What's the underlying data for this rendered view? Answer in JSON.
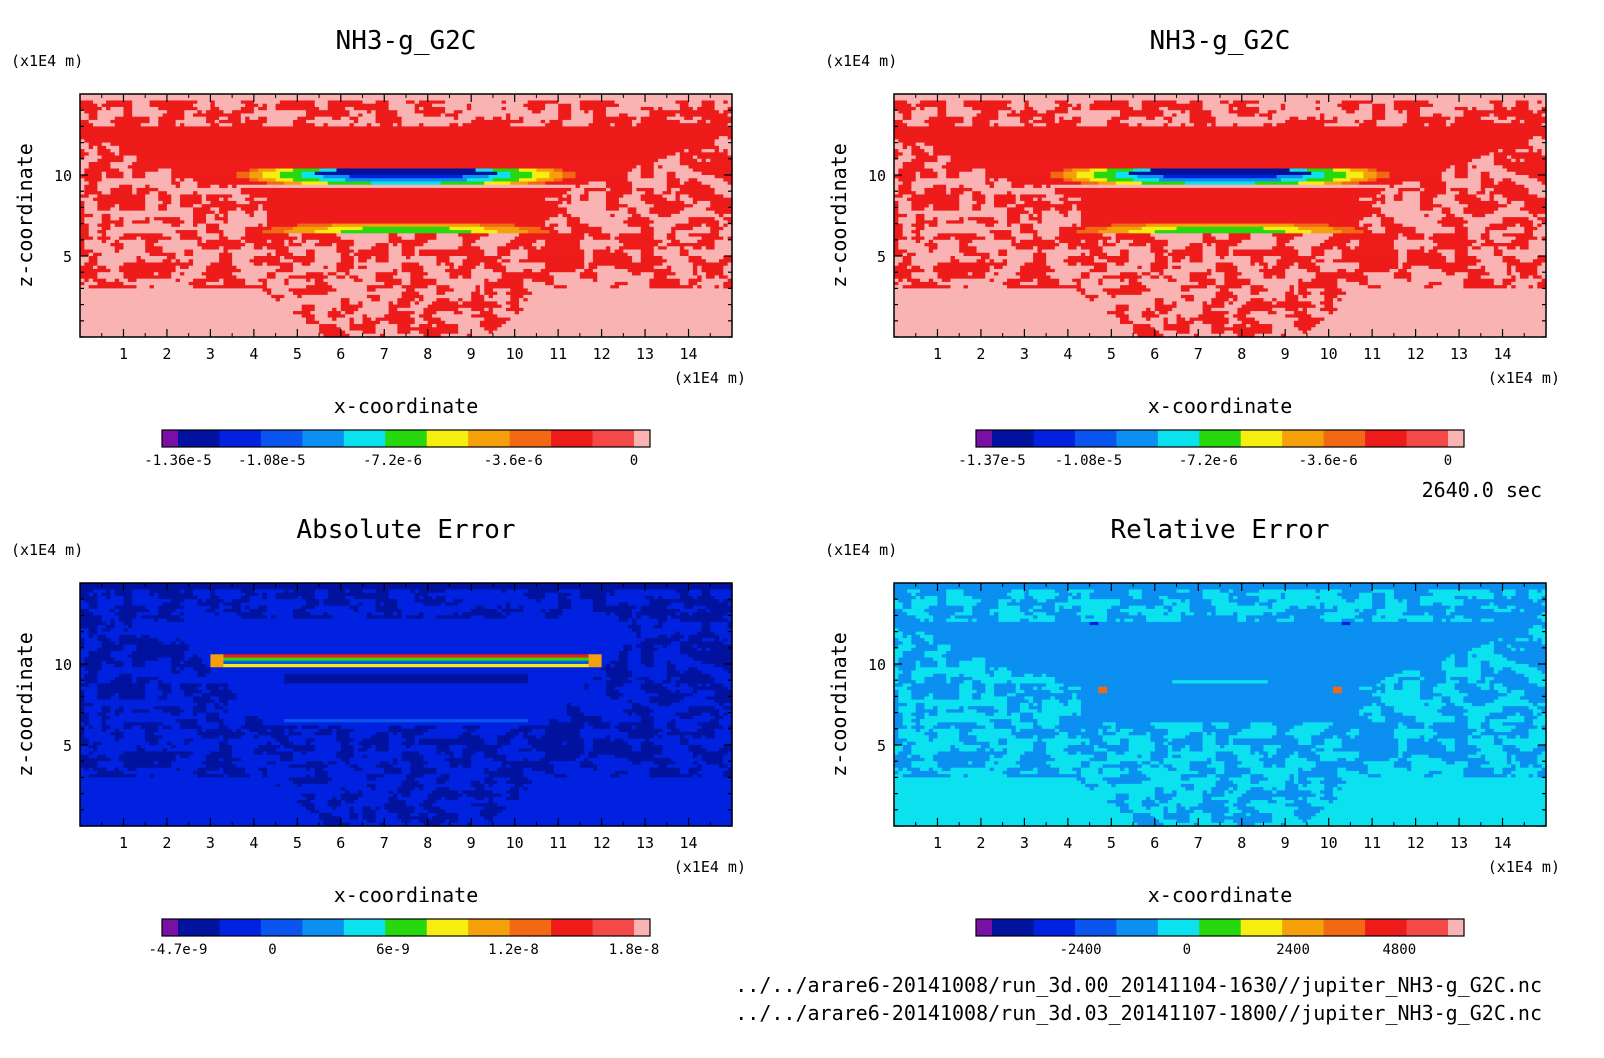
{
  "time_label": "2640.0 sec",
  "files": [
    "../../arare6-20141008/run_3d.00_20141104-1630//jupiter_NH3-g_G2C.nc",
    "../../arare6-20141008/run_3d.03_20141107-1800//jupiter_NH3-g_G2C.nc"
  ],
  "chart_data": [
    {
      "type": "heatmap",
      "title": "NH3-g_G2C",
      "xlabel": "x-coordinate",
      "ylabel": "z-coordinate",
      "x_unit": "(x1E4 m)",
      "y_unit": "(x1E4 m)",
      "xlim": [
        0,
        15
      ],
      "ylim": [
        0,
        15
      ],
      "x_ticks": [
        1,
        2,
        3,
        4,
        5,
        6,
        7,
        8,
        9,
        10,
        11,
        12,
        13,
        14
      ],
      "y_ticks": [
        5,
        10
      ],
      "pattern": "cloud",
      "colorbar": {
        "colors": [
          "#7a0fa6",
          "#00129e",
          "#0022e0",
          "#0a55ee",
          "#0b8ff0",
          "#0ce2ef",
          "#27d80f",
          "#f6ee10",
          "#f5a00b",
          "#f26913",
          "#ee1b1b",
          "#f54848",
          "#f9b3b3"
        ],
        "ticks": [
          -1.36e-05,
          -1.08e-05,
          -7.2e-06,
          -3.6e-06,
          0
        ],
        "tick_labels": [
          "-1.36e-5",
          "-1.08e-5",
          "-7.2e-6",
          "-3.6e-6",
          "0"
        ],
        "range": [
          -1.36e-05,
          0
        ]
      }
    },
    {
      "type": "heatmap",
      "title": "NH3-g_G2C",
      "xlabel": "x-coordinate",
      "ylabel": "z-coordinate",
      "x_unit": "(x1E4 m)",
      "y_unit": "(x1E4 m)",
      "xlim": [
        0,
        15
      ],
      "ylim": [
        0,
        15
      ],
      "x_ticks": [
        1,
        2,
        3,
        4,
        5,
        6,
        7,
        8,
        9,
        10,
        11,
        12,
        13,
        14
      ],
      "y_ticks": [
        5,
        10
      ],
      "pattern": "cloud",
      "colorbar": {
        "colors": [
          "#7a0fa6",
          "#00129e",
          "#0022e0",
          "#0a55ee",
          "#0b8ff0",
          "#0ce2ef",
          "#27d80f",
          "#f6ee10",
          "#f5a00b",
          "#f26913",
          "#ee1b1b",
          "#f54848",
          "#f9b3b3"
        ],
        "ticks": [
          -1.37e-05,
          -1.08e-05,
          -7.2e-06,
          -3.6e-06,
          0
        ],
        "tick_labels": [
          "-1.37e-5",
          "-1.08e-5",
          "-7.2e-6",
          "-3.6e-6",
          "0"
        ],
        "range": [
          -1.37e-05,
          0
        ]
      }
    },
    {
      "type": "heatmap",
      "title": "Absolute Error",
      "xlabel": "x-coordinate",
      "ylabel": "z-coordinate",
      "x_unit": "(x1E4 m)",
      "y_unit": "(x1E4 m)",
      "xlim": [
        0,
        15
      ],
      "ylim": [
        0,
        15
      ],
      "x_ticks": [
        1,
        2,
        3,
        4,
        5,
        6,
        7,
        8,
        9,
        10,
        11,
        12,
        13,
        14
      ],
      "y_ticks": [
        5,
        10
      ],
      "pattern": "abs",
      "colorbar": {
        "colors": [
          "#7a0fa6",
          "#00129e",
          "#0022e0",
          "#0a55ee",
          "#0b8ff0",
          "#0ce2ef",
          "#27d80f",
          "#f6ee10",
          "#f5a00b",
          "#f26913",
          "#ee1b1b",
          "#f54848",
          "#f9b3b3"
        ],
        "ticks": [
          -4.7e-09,
          0,
          6e-09,
          1.2e-08,
          1.8e-08
        ],
        "tick_labels": [
          "-4.7e-9",
          "0",
          "6e-9",
          "1.2e-8",
          "1.8e-8"
        ],
        "range": [
          -4.7e-09,
          1.8e-08
        ]
      }
    },
    {
      "type": "heatmap",
      "title": "Relative Error",
      "xlabel": "x-coordinate",
      "ylabel": "z-coordinate",
      "x_unit": "(x1E4 m)",
      "y_unit": "(x1E4 m)",
      "xlim": [
        0,
        15
      ],
      "ylim": [
        0,
        15
      ],
      "x_ticks": [
        1,
        2,
        3,
        4,
        5,
        6,
        7,
        8,
        9,
        10,
        11,
        12,
        13,
        14
      ],
      "y_ticks": [
        5,
        10
      ],
      "pattern": "rel",
      "colorbar": {
        "colors": [
          "#7a0fa6",
          "#00129e",
          "#0022e0",
          "#0a55ee",
          "#0b8ff0",
          "#0ce2ef",
          "#27d80f",
          "#f6ee10",
          "#f5a00b",
          "#f26913",
          "#ee1b1b",
          "#f54848",
          "#f9b3b3"
        ],
        "ticks": [
          -2400,
          0,
          2400,
          4800
        ],
        "tick_labels": [
          "-2400",
          "0",
          "2400",
          "4800"
        ],
        "range": [
          -4400,
          5900
        ]
      }
    }
  ]
}
